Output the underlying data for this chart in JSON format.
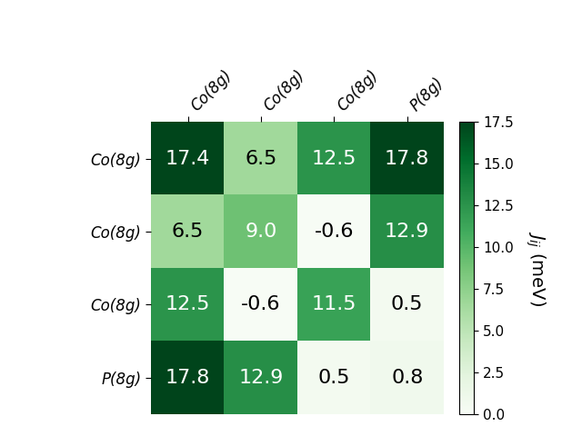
{
  "matrix": [
    [
      17.4,
      6.5,
      12.5,
      17.8
    ],
    [
      6.5,
      9.0,
      -0.6,
      12.9
    ],
    [
      12.5,
      -0.6,
      11.5,
      0.5
    ],
    [
      17.8,
      12.9,
      0.5,
      0.8
    ]
  ],
  "row_labels": [
    "Co(8g)",
    "Co(8g)",
    "Co(8g)",
    "P(8g)"
  ],
  "col_labels": [
    "Co(8g)",
    "Co(8g)",
    "Co(8g)",
    "P(8g)"
  ],
  "vmin": 0.0,
  "vmax": 17.5,
  "cmap": "Greens",
  "colorbar_label": "$J_{ij}$ (meV)",
  "colorbar_ticks": [
    0.0,
    2.5,
    5.0,
    7.5,
    10.0,
    12.5,
    15.0,
    17.5
  ],
  "cell_fontsize": 16,
  "label_fontsize": 12,
  "colorbar_fontsize": 14,
  "colorbar_tick_fontsize": 11,
  "figsize": [
    6.4,
    4.8
  ],
  "dpi": 100,
  "background_color": "white"
}
